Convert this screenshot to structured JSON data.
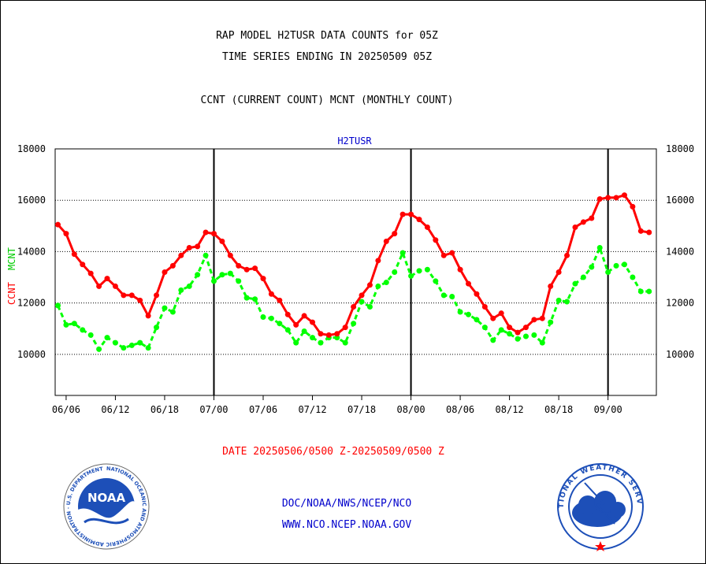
{
  "header": {
    "title_line1": "RAP MODEL H2TUSR DATA COUNTS for 05Z",
    "title_line2": "TIME SERIES ENDING IN 20250509 05Z",
    "title_line3": "CCNT (CURRENT COUNT) MCNT (MONTHLY COUNT)"
  },
  "footer": {
    "date_range": "DATE 20250506/0500 Z-20250509/0500 Z",
    "credit_line1": "DOC/NOAA/NWS/NCEP/NCO",
    "credit_line2": "WWW.NCO.NCEP.NOAA.GOV"
  },
  "logos": {
    "left": {
      "center_text": "NOAA",
      "ring_text": "NATIONAL OCEANIC AND ATMOSPHERIC ADMINISTRATION · U.S. DEPARTMENT OF COMMERCE"
    },
    "right": {
      "ring_text": "NATIONAL WEATHER SERVICE"
    }
  },
  "colors": {
    "ccnt": "#ff0000",
    "mcnt": "#00ff00",
    "series_label": "#0000cc",
    "axis": "#000000"
  },
  "chart_data": {
    "type": "line",
    "series_label": "H2TUSR",
    "ylabel_left": [
      "CCNT",
      "MCNT"
    ],
    "ylim": [
      8400,
      18000
    ],
    "yticks": [
      10000,
      12000,
      14000,
      16000,
      18000
    ],
    "ytick_labels": [
      "10000",
      "12000",
      "14000",
      "16000",
      "18000"
    ],
    "grid": true,
    "x_tick_labels": [
      "06/06",
      "06/12",
      "06/18",
      "07/00",
      "07/06",
      "07/12",
      "07/18",
      "08/00",
      "08/06",
      "08/12",
      "08/18",
      "09/00"
    ],
    "x_major_labels": [
      "07/00",
      "08/00",
      "09/00"
    ],
    "x_step_hours": 1,
    "x_tick_index": [
      1,
      7,
      13,
      19,
      25,
      31,
      37,
      43,
      49,
      55,
      61,
      67
    ],
    "series": [
      {
        "name": "CCNT",
        "values": [
          15050,
          14700,
          13900,
          13500,
          13150,
          12650,
          12950,
          12650,
          12300,
          12300,
          12100,
          11500,
          12300,
          13200,
          13450,
          13850,
          14150,
          14200,
          14750,
          14700,
          14400,
          13850,
          13450,
          13300,
          13350,
          12950,
          12350,
          12100,
          11550,
          11150,
          11500,
          11250,
          10800,
          10750,
          10800,
          11050,
          11850,
          12300,
          12700,
          13650,
          14400,
          14700,
          15450,
          15450,
          15250,
          14950,
          14450,
          13850,
          13950,
          13300,
          12750,
          12350,
          11850,
          11400,
          11600,
          11050,
          10850,
          11050,
          11350,
          11400,
          12650,
          13200,
          13850,
          14950,
          15150,
          15300,
          16050,
          16100,
          16100,
          16200,
          15750,
          14800,
          14750
        ]
      },
      {
        "name": "MCNT",
        "values": [
          11900,
          11150,
          11200,
          10950,
          10750,
          10200,
          10650,
          10450,
          10250,
          10350,
          10450,
          10250,
          11050,
          11800,
          11650,
          12500,
          12650,
          13100,
          13850,
          12850,
          13100,
          13150,
          12850,
          12200,
          12150,
          11450,
          11400,
          11200,
          10950,
          10450,
          10900,
          10650,
          10450,
          10650,
          10650,
          10450,
          11200,
          12050,
          11850,
          12650,
          12800,
          13200,
          13950,
          13050,
          13250,
          13300,
          12850,
          12300,
          12250,
          11650,
          11550,
          11350,
          11050,
          10550,
          10950,
          10800,
          10600,
          10700,
          10750,
          10450,
          11250,
          12100,
          12050,
          12750,
          13000,
          13400,
          14150,
          13200,
          13450,
          13500,
          13000,
          12450,
          12450
        ]
      }
    ]
  }
}
